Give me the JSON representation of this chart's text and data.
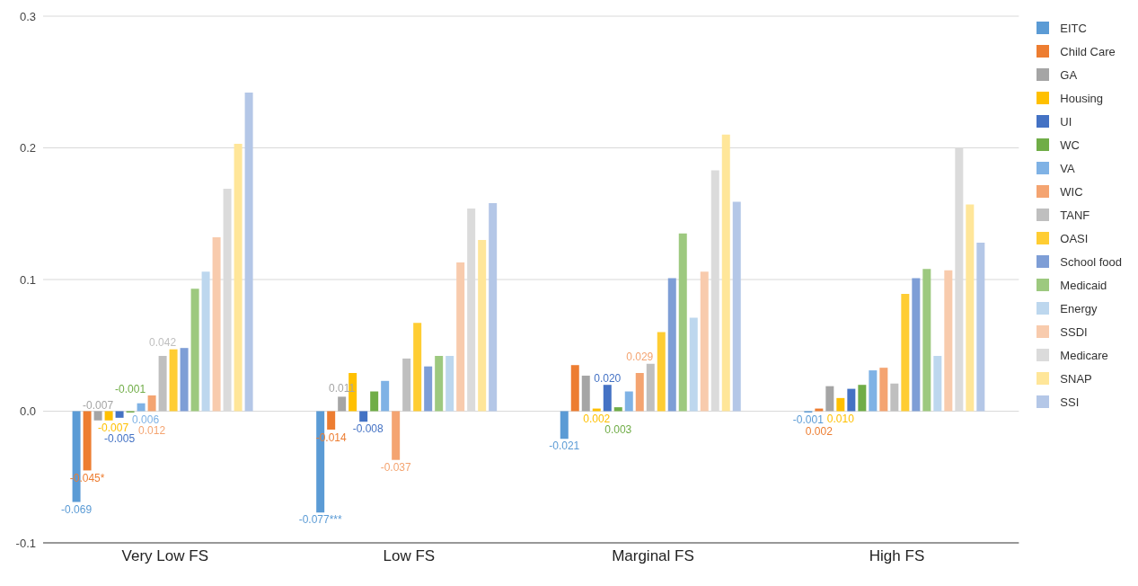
{
  "chart_data": {
    "type": "bar",
    "categories": [
      "Very Low FS",
      "Low FS",
      "Marginal FS",
      "High FS"
    ],
    "ylim": [
      -0.1,
      0.3
    ],
    "yticks": [
      {
        "value": -0.1,
        "label": "-0.1"
      },
      {
        "value": 0,
        "label": "0.0"
      },
      {
        "value": 0.1,
        "label": "0.1"
      },
      {
        "value": 0.2,
        "label": "0.2"
      },
      {
        "value": 0.3,
        "label": "0.3"
      }
    ],
    "grid": "y",
    "legend": "right",
    "series": [
      {
        "name": "EITC",
        "color": "#5b9bd5",
        "values": [
          -0.069,
          -0.077,
          -0.021,
          -0.001
        ],
        "value_labels": [
          "-0.069",
          "-0.077***",
          "-0.021",
          "-0.001"
        ]
      },
      {
        "name": "Child Care",
        "color": "#ed7d31",
        "values": [
          -0.045,
          -0.014,
          0.035,
          0.002
        ],
        "value_labels": [
          "-0.045*",
          "-0.014",
          null,
          "0.002"
        ]
      },
      {
        "name": "GA",
        "color": "#a5a5a5",
        "values": [
          -0.007,
          0.011,
          0.027,
          0.019
        ],
        "value_labels": [
          "-0.007",
          "0.011",
          null,
          null
        ]
      },
      {
        "name": "Housing",
        "color": "#ffc000",
        "values": [
          -0.007,
          0.029,
          0.002,
          0.01
        ],
        "value_labels": [
          "-0.007",
          null,
          "0.002",
          "0.010"
        ]
      },
      {
        "name": "UI",
        "color": "#4472c4",
        "values": [
          -0.005,
          -0.008,
          0.02,
          0.017
        ],
        "value_labels": [
          "-0.005",
          "-0.008",
          "0.020",
          null
        ]
      },
      {
        "name": "WC",
        "color": "#70ad47",
        "values": [
          -0.001,
          0.015,
          0.003,
          0.02
        ],
        "value_labels": [
          "-0.001",
          null,
          "0.003",
          null
        ]
      },
      {
        "name": "VA",
        "color": "#7fb2e5",
        "values": [
          0.006,
          0.023,
          0.015,
          0.031
        ],
        "value_labels": [
          "0.006",
          null,
          null,
          null
        ]
      },
      {
        "name": "WIC",
        "color": "#f4a471",
        "values": [
          0.012,
          -0.037,
          0.029,
          0.033
        ],
        "value_labels": [
          "0.012",
          "-0.037",
          "0.029",
          null
        ]
      },
      {
        "name": "TANF",
        "color": "#bfbfbf",
        "values": [
          0.042,
          0.04,
          0.036,
          0.021
        ],
        "value_labels": [
          "0.042",
          null,
          null,
          null
        ]
      },
      {
        "name": "OASI",
        "color": "#ffcd33",
        "values": [
          0.047,
          0.067,
          0.06,
          0.089
        ]
      },
      {
        "name": "School food",
        "color": "#7e9ed6",
        "values": [
          0.048,
          0.034,
          0.101,
          0.101
        ]
      },
      {
        "name": "Medicaid",
        "color": "#9dc97f",
        "values": [
          0.093,
          0.042,
          0.135,
          0.108
        ]
      },
      {
        "name": "Energy",
        "color": "#bdd7ee",
        "values": [
          0.106,
          0.042,
          0.071,
          0.042
        ]
      },
      {
        "name": "SSDI",
        "color": "#f8cbad",
        "values": [
          0.132,
          0.113,
          0.106,
          0.107
        ]
      },
      {
        "name": "Medicare",
        "color": "#dbdbdb",
        "values": [
          0.169,
          0.154,
          0.183,
          0.2
        ]
      },
      {
        "name": "SNAP",
        "color": "#ffe699",
        "values": [
          0.203,
          0.13,
          0.21,
          0.157
        ]
      },
      {
        "name": "SSI",
        "color": "#b4c7e7",
        "values": [
          0.242,
          0.158,
          0.159,
          0.128
        ]
      }
    ]
  }
}
